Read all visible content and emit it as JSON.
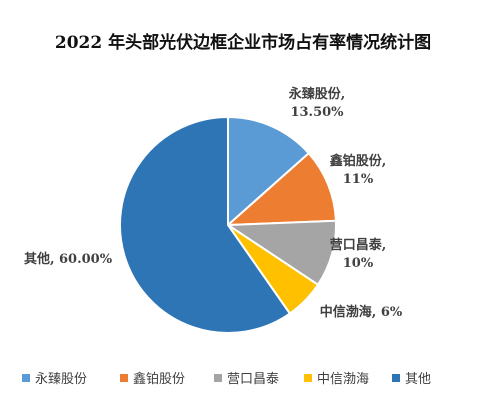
{
  "chart_data": {
    "type": "pie",
    "title": "2022 年头部光伏边框企业市场占有率情况统计图",
    "slices": [
      {
        "name": "永臻股份",
        "value": 13.5,
        "label_lines": [
          "永臻股份,",
          "13.50%"
        ],
        "color": "#5B9BD5"
      },
      {
        "name": "鑫铂股份",
        "value": 11,
        "label_lines": [
          "鑫铂股份,",
          "11%"
        ],
        "color": "#ED7D31"
      },
      {
        "name": "营口昌泰",
        "value": 10,
        "label_lines": [
          "营口昌泰,",
          "10%"
        ],
        "color": "#A5A5A5"
      },
      {
        "name": "中信渤海",
        "value": 6,
        "label_lines": [
          "中信渤海, 6%"
        ],
        "color": "#FFC000"
      },
      {
        "name": "其他",
        "value": 60,
        "label_lines": [
          "其他, 60.00%"
        ],
        "color": "#2E75B6"
      }
    ],
    "start_angle_deg": 0,
    "direction": "clockwise",
    "legend_position": "bottom"
  }
}
